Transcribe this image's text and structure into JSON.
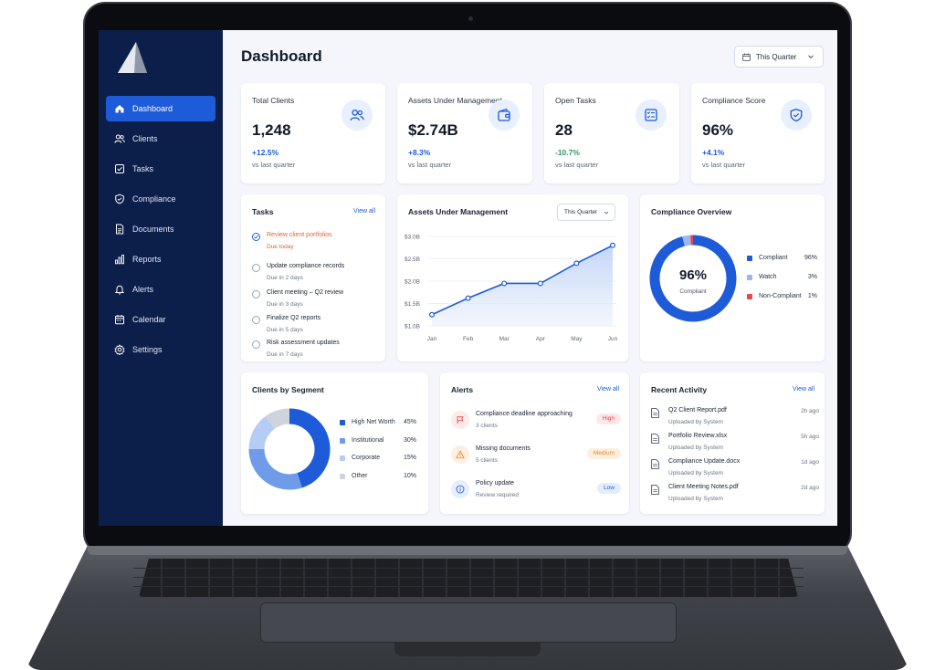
{
  "sidebar": {
    "items": [
      {
        "label": "Dashboard",
        "icon": "home-icon",
        "active": true
      },
      {
        "label": "Clients",
        "icon": "users-icon"
      },
      {
        "label": "Tasks",
        "icon": "checkbox-icon"
      },
      {
        "label": "Compliance",
        "icon": "shield-icon"
      },
      {
        "label": "Documents",
        "icon": "document-icon"
      },
      {
        "label": "Reports",
        "icon": "bar-chart-icon"
      },
      {
        "label": "Alerts",
        "icon": "bell-icon"
      },
      {
        "label": "Calendar",
        "icon": "calendar-icon"
      },
      {
        "label": "Settings",
        "icon": "gear-icon"
      }
    ]
  },
  "header": {
    "title": "Dashboard",
    "period": "This Quarter"
  },
  "kpis": [
    {
      "label": "Total Clients",
      "value": "1,248",
      "delta": "+12.5%",
      "sub": "vs last quarter",
      "icon": "users-icon"
    },
    {
      "label": "Assets Under Management",
      "value": "$2.74B",
      "delta": "+8.3%",
      "sub": "vs last quarter",
      "icon": "wallet-icon"
    },
    {
      "label": "Open Tasks",
      "value": "28",
      "delta": "-10.7%",
      "sub": "vs last quarter",
      "icon": "checklist-icon"
    },
    {
      "label": "Compliance Score",
      "value": "96%",
      "delta": "+4.1%",
      "sub": "vs last quarter",
      "icon": "shield-icon"
    }
  ],
  "tasks": {
    "title": "Tasks",
    "view_all": "View all",
    "items": [
      {
        "title": "Review client portfolios",
        "due": "Due today",
        "done": true
      },
      {
        "title": "Update compliance records",
        "due": "Due in 2 days"
      },
      {
        "title": "Client meeting – Q2 review",
        "due": "Due in 3 days"
      },
      {
        "title": "Finalize Q2 reports",
        "due": "Due in 5 days"
      },
      {
        "title": "Risk assessment updates",
        "due": "Due in 7 days"
      }
    ]
  },
  "aum_chart": {
    "title": "Assets Under Management",
    "period": "This Quarter"
  },
  "chart_data": [
    {
      "type": "area",
      "title": "Assets Under Management",
      "x": [
        "Jan",
        "Feb",
        "Mar",
        "Apr",
        "May",
        "Jun"
      ],
      "y_ticks": [
        "$3.0B",
        "$2.5B",
        "$2.0B",
        "$1.5B",
        "$1.0B"
      ],
      "ylim": [
        1.0,
        3.0
      ],
      "values": [
        1.25,
        1.62,
        1.95,
        1.95,
        2.4,
        2.8
      ],
      "grid": true
    },
    {
      "type": "pie",
      "title": "Compliance Overview",
      "center_value": "96%",
      "center_label": "Compliant",
      "categories": [
        "Compliant",
        "Watch",
        "Non-Compliant"
      ],
      "values": [
        96,
        3,
        1
      ],
      "value_labels": [
        "96%",
        "3%",
        "1%"
      ],
      "colors": [
        "#1d5bd8",
        "#9ab8ef",
        "#e5484d"
      ],
      "legend": "right"
    },
    {
      "type": "pie",
      "title": "Clients by Segment",
      "categories": [
        "High Net Worth",
        "Institutional",
        "Corporate",
        "Other"
      ],
      "values": [
        45,
        30,
        15,
        10
      ],
      "value_labels": [
        "45%",
        "30%",
        "15%",
        "10%"
      ],
      "colors": [
        "#1d5bd8",
        "#6f9be8",
        "#b5cdf5",
        "#cfd4dc"
      ],
      "legend": "right"
    }
  ],
  "compliance": {
    "title": "Compliance Overview"
  },
  "segments": {
    "title": "Clients by Segment"
  },
  "alerts": {
    "title": "Alerts",
    "view_all": "View all",
    "items": [
      {
        "title": "Compliance deadline approaching",
        "sub": "3 clients",
        "badge": "High",
        "icon": "flag-icon"
      },
      {
        "title": "Missing documents",
        "sub": "5 clients",
        "badge": "Medium",
        "icon": "warning-icon"
      },
      {
        "title": "Policy update",
        "sub": "Review required",
        "badge": "Low",
        "icon": "info-icon"
      }
    ]
  },
  "activity": {
    "title": "Recent Activity",
    "view_all": "View all",
    "items": [
      {
        "name": "Q2 Client Report.pdf",
        "sub": "Uploaded by System",
        "ago": "2h ago"
      },
      {
        "name": "Portfolio Review.xlsx",
        "sub": "Uploaded by System",
        "ago": "5h ago"
      },
      {
        "name": "Compliance Update.docx",
        "sub": "Uploaded by System",
        "ago": "1d ago"
      },
      {
        "name": "Client Meeting Notes.pdf",
        "sub": "Uploaded by System",
        "ago": "2d ago"
      }
    ]
  },
  "colors": {
    "sidebar": "#0c1f4b",
    "accent": "#1d5bd8",
    "positive": "#1d5bd8",
    "negative": "#2e9a5a",
    "task_due_today": "#e0653a",
    "badge_high": "#e5484d",
    "badge_medium": "#e0892f",
    "badge_low": "#1d5bd8"
  }
}
